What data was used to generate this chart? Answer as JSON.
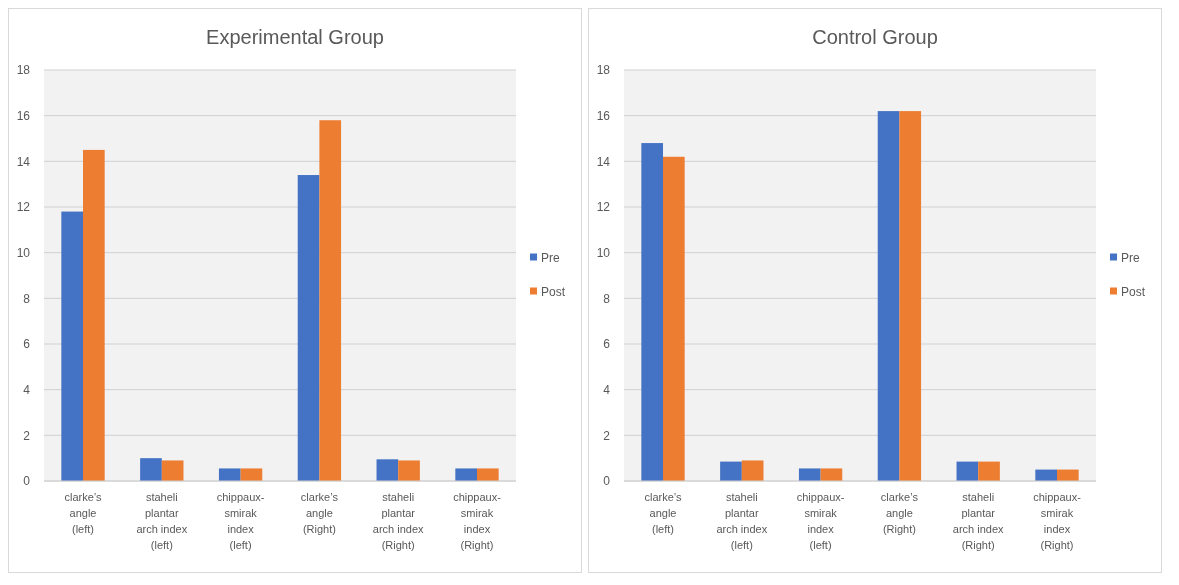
{
  "chart_data": [
    {
      "type": "bar",
      "title": "Experimental Group",
      "categories": [
        "clarke’s angle (left)",
        "staheli plantar arch index (left)",
        "chippaux- smirak index (left)",
        "clarke’s angle (Right)",
        "staheli plantar arch index (Right)",
        "chippaux- smirak index (Right)"
      ],
      "series": [
        {
          "name": "Pre",
          "color": "#4472c4",
          "values": [
            11.8,
            1.0,
            0.55,
            13.4,
            0.95,
            0.55
          ]
        },
        {
          "name": "Post",
          "color": "#ed7d31",
          "values": [
            14.5,
            0.9,
            0.55,
            15.8,
            0.9,
            0.55
          ]
        }
      ],
      "ylim": [
        0,
        18
      ],
      "yticks": [
        0,
        2,
        4,
        6,
        8,
        10,
        12,
        14,
        16,
        18
      ],
      "grid": "y",
      "legend": "right"
    },
    {
      "type": "bar",
      "title": "Control Group",
      "categories": [
        "clarke’s angle (left)",
        "staheli plantar arch index (left)",
        "chippaux- smirak index (left)",
        "clarke’s angle (Right)",
        "staheli plantar arch index (Right)",
        "chippaux- smirak index (Right)"
      ],
      "series": [
        {
          "name": "Pre",
          "color": "#4472c4",
          "values": [
            14.8,
            0.85,
            0.55,
            16.2,
            0.85,
            0.5
          ]
        },
        {
          "name": "Post",
          "color": "#ed7d31",
          "values": [
            14.2,
            0.9,
            0.55,
            16.2,
            0.85,
            0.5
          ]
        }
      ],
      "ylim": [
        0,
        18
      ],
      "yticks": [
        0,
        2,
        4,
        6,
        8,
        10,
        12,
        14,
        16,
        18
      ],
      "grid": "y",
      "legend": "right"
    }
  ]
}
